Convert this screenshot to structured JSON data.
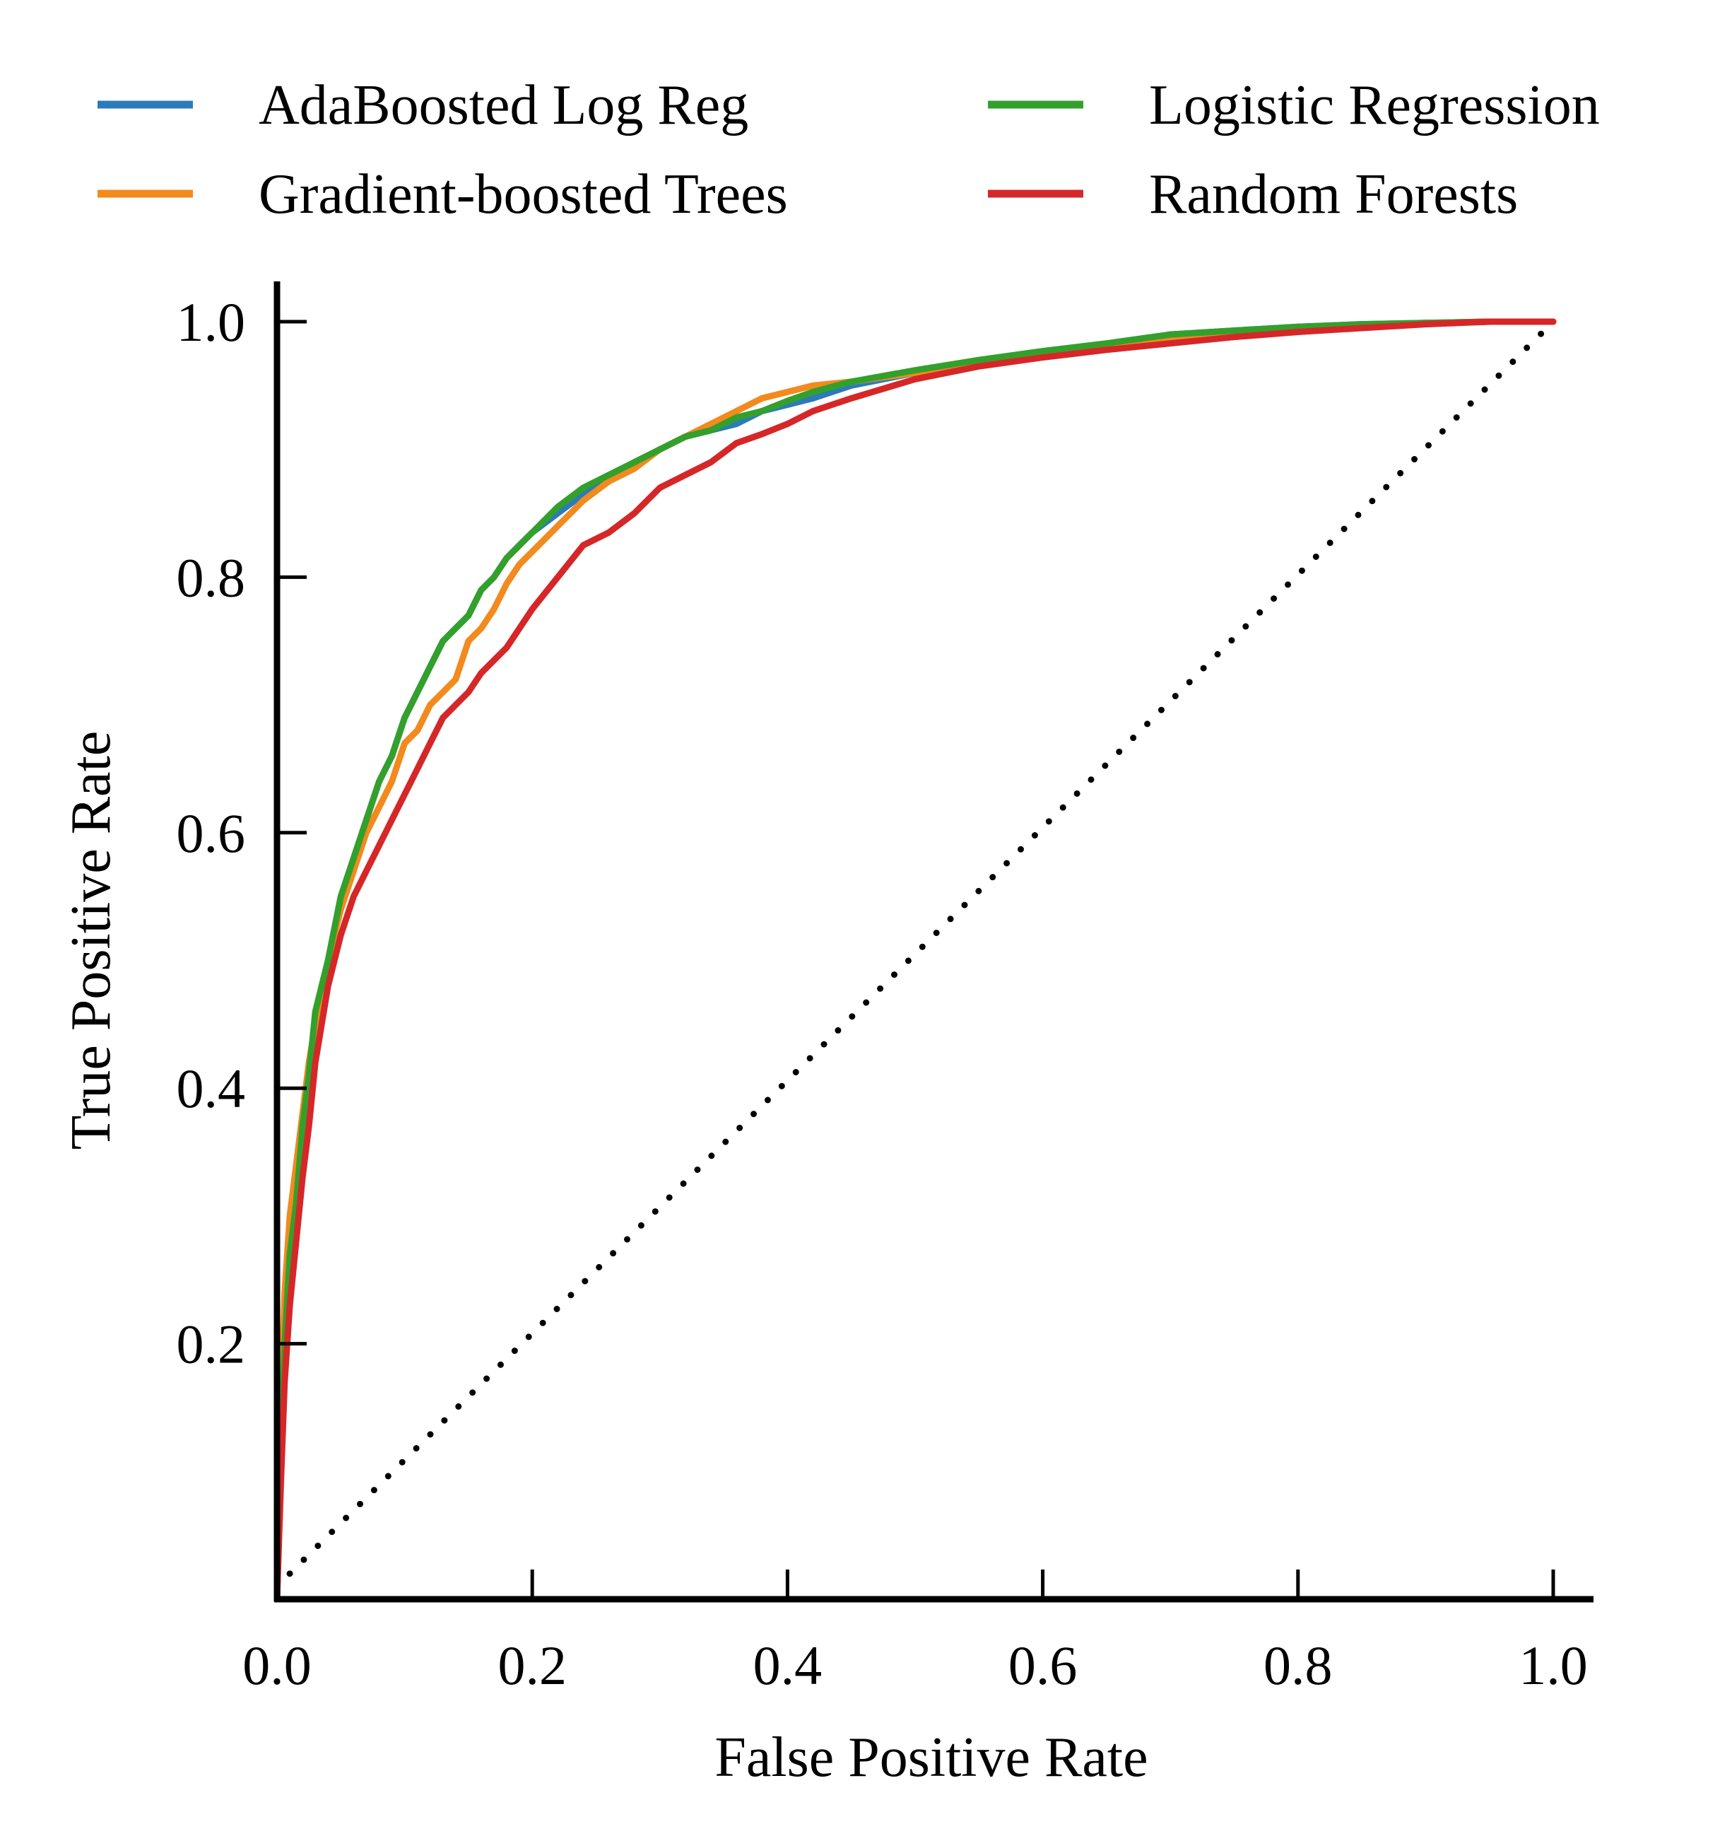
{
  "chart_data": {
    "type": "line",
    "title": "",
    "xlabel": "False Positive Rate",
    "ylabel": "True Positive Rate",
    "xlim": [
      0.0,
      1.0
    ],
    "ylim": [
      0.0,
      1.0
    ],
    "xticks": [
      "0.0",
      "0.2",
      "0.4",
      "0.6",
      "0.8",
      "1.0"
    ],
    "yticks": [
      "0.2",
      "0.4",
      "0.6",
      "0.8",
      "1.0"
    ],
    "xtick_values": [
      0.0,
      0.2,
      0.4,
      0.6,
      0.8,
      1.0
    ],
    "ytick_values": [
      0.2,
      0.4,
      0.6,
      0.8,
      1.0
    ],
    "grid": false,
    "legend_position": "top",
    "legend_columns": 2,
    "reference_line": {
      "style": "dotted",
      "color": "#000000",
      "x": [
        0.01,
        1.0
      ],
      "y": [
        0.02,
        1.0
      ]
    },
    "series": [
      {
        "name": "AdaBoosted Log Reg",
        "color": "#2b7bba",
        "x": [
          0.0,
          0.003,
          0.006,
          0.01,
          0.015,
          0.02,
          0.025,
          0.03,
          0.035,
          0.04,
          0.05,
          0.06,
          0.07,
          0.08,
          0.09,
          0.1,
          0.11,
          0.12,
          0.13,
          0.14,
          0.15,
          0.16,
          0.17,
          0.18,
          0.19,
          0.2,
          0.22,
          0.24,
          0.26,
          0.28,
          0.3,
          0.32,
          0.34,
          0.36,
          0.38,
          0.4,
          0.42,
          0.45,
          0.5,
          0.55,
          0.6,
          0.65,
          0.7,
          0.75,
          0.8,
          0.85,
          0.9,
          0.95,
          1.0
        ],
        "y": [
          0.0,
          0.1,
          0.2,
          0.26,
          0.3,
          0.36,
          0.4,
          0.45,
          0.47,
          0.5,
          0.55,
          0.58,
          0.61,
          0.64,
          0.66,
          0.69,
          0.71,
          0.73,
          0.75,
          0.76,
          0.77,
          0.79,
          0.8,
          0.815,
          0.825,
          0.835,
          0.85,
          0.865,
          0.875,
          0.89,
          0.9,
          0.91,
          0.915,
          0.92,
          0.93,
          0.935,
          0.94,
          0.95,
          0.96,
          0.97,
          0.975,
          0.98,
          0.99,
          0.993,
          0.996,
          0.998,
          0.999,
          1.0,
          1.0
        ]
      },
      {
        "name": "Gradient-boosted Trees",
        "color": "#f28a1e",
        "x": [
          0.0,
          0.003,
          0.006,
          0.01,
          0.015,
          0.02,
          0.025,
          0.03,
          0.035,
          0.04,
          0.05,
          0.06,
          0.07,
          0.08,
          0.09,
          0.1,
          0.11,
          0.12,
          0.13,
          0.14,
          0.15,
          0.16,
          0.17,
          0.18,
          0.19,
          0.2,
          0.22,
          0.24,
          0.26,
          0.28,
          0.3,
          0.32,
          0.34,
          0.36,
          0.38,
          0.4,
          0.42,
          0.45,
          0.5,
          0.55,
          0.6,
          0.65,
          0.7,
          0.75,
          0.8,
          0.85,
          0.9,
          0.95,
          1.0
        ],
        "y": [
          0.0,
          0.15,
          0.24,
          0.3,
          0.34,
          0.38,
          0.42,
          0.45,
          0.48,
          0.5,
          0.54,
          0.57,
          0.6,
          0.62,
          0.64,
          0.67,
          0.68,
          0.7,
          0.71,
          0.72,
          0.75,
          0.76,
          0.775,
          0.795,
          0.81,
          0.82,
          0.84,
          0.86,
          0.875,
          0.885,
          0.9,
          0.91,
          0.92,
          0.93,
          0.94,
          0.945,
          0.95,
          0.953,
          0.96,
          0.968,
          0.975,
          0.98,
          0.985,
          0.99,
          0.995,
          0.997,
          0.999,
          1.0,
          1.0
        ]
      },
      {
        "name": "Logistic Regression",
        "color": "#33a02c",
        "x": [
          0.0,
          0.003,
          0.006,
          0.01,
          0.015,
          0.02,
          0.025,
          0.03,
          0.035,
          0.04,
          0.05,
          0.06,
          0.07,
          0.08,
          0.09,
          0.1,
          0.11,
          0.12,
          0.13,
          0.14,
          0.15,
          0.16,
          0.17,
          0.18,
          0.19,
          0.2,
          0.22,
          0.24,
          0.26,
          0.28,
          0.3,
          0.32,
          0.34,
          0.36,
          0.38,
          0.4,
          0.42,
          0.45,
          0.5,
          0.55,
          0.6,
          0.65,
          0.7,
          0.75,
          0.8,
          0.85,
          0.9,
          0.95,
          1.0
        ],
        "y": [
          0.0,
          0.12,
          0.2,
          0.27,
          0.31,
          0.37,
          0.41,
          0.46,
          0.48,
          0.5,
          0.55,
          0.58,
          0.61,
          0.64,
          0.66,
          0.69,
          0.71,
          0.73,
          0.75,
          0.76,
          0.77,
          0.79,
          0.8,
          0.815,
          0.825,
          0.835,
          0.855,
          0.87,
          0.88,
          0.89,
          0.9,
          0.91,
          0.915,
          0.925,
          0.93,
          0.938,
          0.945,
          0.953,
          0.962,
          0.97,
          0.977,
          0.983,
          0.99,
          0.993,
          0.996,
          0.998,
          0.999,
          1.0,
          1.0
        ]
      },
      {
        "name": "Random Forests",
        "color": "#d62728",
        "x": [
          0.0,
          0.003,
          0.006,
          0.01,
          0.015,
          0.02,
          0.025,
          0.03,
          0.035,
          0.04,
          0.05,
          0.06,
          0.07,
          0.08,
          0.09,
          0.1,
          0.11,
          0.12,
          0.13,
          0.14,
          0.15,
          0.16,
          0.17,
          0.18,
          0.19,
          0.2,
          0.22,
          0.24,
          0.26,
          0.28,
          0.3,
          0.32,
          0.34,
          0.36,
          0.38,
          0.4,
          0.42,
          0.45,
          0.5,
          0.55,
          0.6,
          0.65,
          0.7,
          0.75,
          0.8,
          0.85,
          0.9,
          0.95,
          1.0
        ],
        "y": [
          0.0,
          0.09,
          0.17,
          0.23,
          0.28,
          0.33,
          0.37,
          0.42,
          0.45,
          0.48,
          0.52,
          0.55,
          0.57,
          0.59,
          0.61,
          0.63,
          0.65,
          0.67,
          0.69,
          0.7,
          0.71,
          0.725,
          0.735,
          0.745,
          0.76,
          0.775,
          0.8,
          0.825,
          0.835,
          0.85,
          0.87,
          0.88,
          0.89,
          0.905,
          0.912,
          0.92,
          0.93,
          0.94,
          0.955,
          0.965,
          0.972,
          0.978,
          0.983,
          0.988,
          0.992,
          0.995,
          0.998,
          1.0,
          1.0
        ]
      }
    ]
  }
}
